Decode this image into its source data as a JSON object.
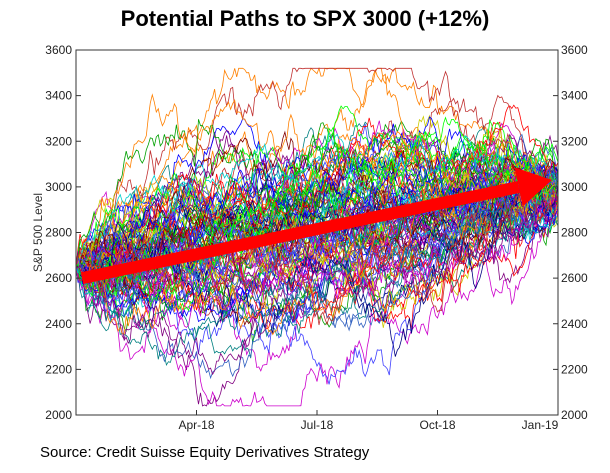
{
  "title": "Potential Paths to SPX 3000 (+12%)",
  "source": "Source: Credit Suisse Equity Derivatives Strategy",
  "chart_data": {
    "type": "line",
    "title": "Potential Paths to SPX 3000 (+12%)",
    "xlabel": "",
    "ylabel": "S&P 500 Level",
    "x_tick_labels": [
      "Apr-18",
      "Jul-18",
      "Oct-18",
      "Jan-19"
    ],
    "x_tick_fractions": [
      0.25,
      0.5,
      0.75,
      1.0
    ],
    "y_ticks": [
      2000,
      2200,
      2400,
      2600,
      2800,
      3000,
      3200,
      3400,
      3600
    ],
    "ylim": [
      2000,
      3600
    ],
    "grid": false,
    "right_axis": true,
    "start_level": 2650,
    "simulated_paths": {
      "count": 120,
      "observed_max": 3510,
      "observed_min": 2060,
      "description_values": {
        "start": 2650,
        "end_mean": 2980
      }
    },
    "trend_arrow": {
      "from": {
        "x_fraction": 0.0,
        "y": 2600
      },
      "to": {
        "x_fraction": 1.0,
        "y": 3030
      },
      "color": "#ff0000"
    },
    "path_colors": [
      "#0000ff",
      "#ff0000",
      "#00a000",
      "#00cccc",
      "#cc00cc",
      "#cccc00",
      "#000080",
      "#800000",
      "#008080",
      "#ff8000",
      "#4040ff",
      "#00ff00",
      "#800080",
      "#3060c0",
      "#c03030"
    ]
  }
}
